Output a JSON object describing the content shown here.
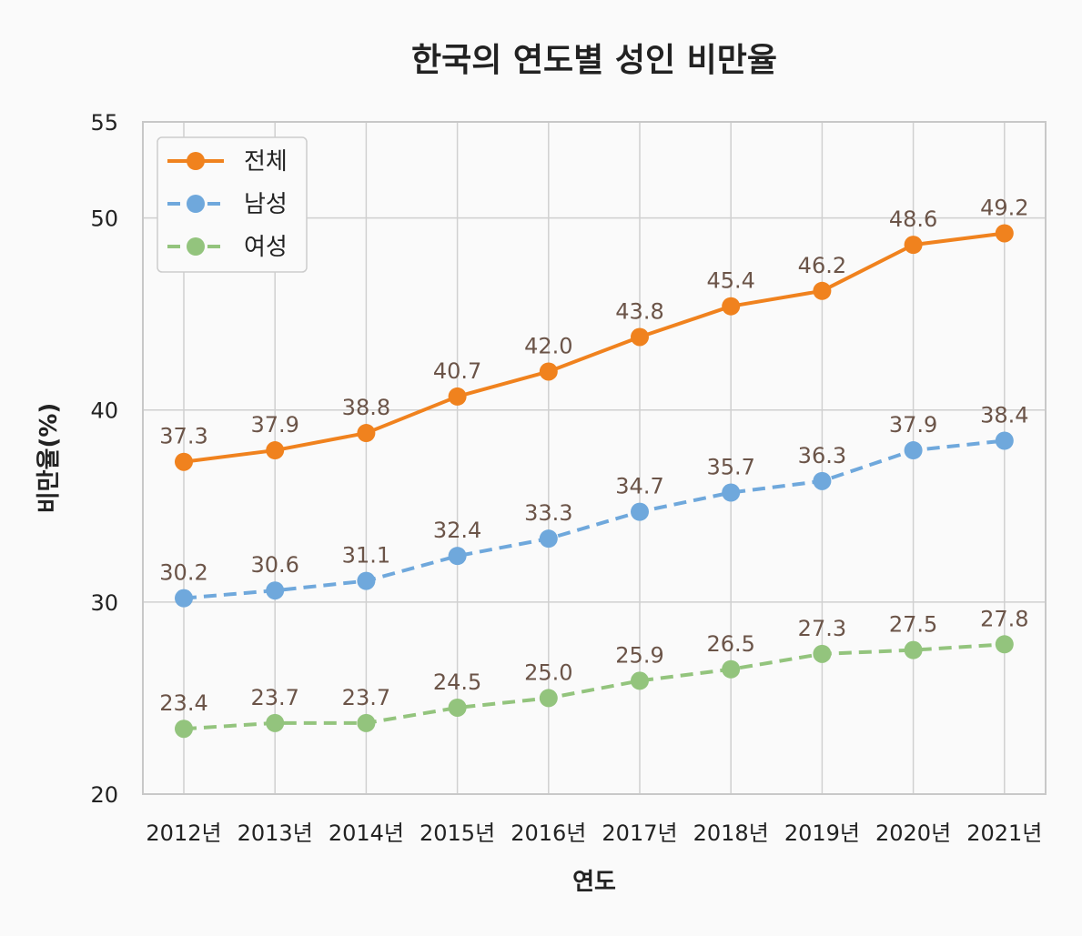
{
  "chart_data": {
    "type": "line",
    "title": "한국의 연도별 성인 비만율",
    "xlabel": "연도",
    "ylabel": "비만율(%)",
    "categories": [
      "2012년",
      "2013년",
      "2014년",
      "2015년",
      "2016년",
      "2017년",
      "2018년",
      "2019년",
      "2020년",
      "2021년"
    ],
    "ylim": [
      20,
      55
    ],
    "yticks": [
      20,
      30,
      40,
      50,
      55
    ],
    "grid": true,
    "legend_position": "top-left",
    "series": [
      {
        "name": "전체",
        "color": "#f0821e",
        "line_style": "solid",
        "values": [
          37.3,
          37.9,
          38.8,
          40.7,
          42.0,
          43.8,
          45.4,
          46.2,
          48.6,
          49.2
        ],
        "labels": [
          "37.3",
          "37.9",
          "38.8",
          "40.7",
          "42.0",
          "43.8",
          "45.4",
          "46.2",
          "48.6",
          "49.2"
        ]
      },
      {
        "name": "남성",
        "color": "#6fa8dc",
        "line_style": "dashed",
        "values": [
          30.2,
          30.6,
          31.1,
          32.4,
          33.3,
          34.7,
          35.7,
          36.3,
          37.9,
          38.4
        ],
        "labels": [
          "30.2",
          "30.6",
          "31.1",
          "32.4",
          "33.3",
          "34.7",
          "35.7",
          "36.3",
          "37.9",
          "38.4"
        ]
      },
      {
        "name": "여성",
        "color": "#93c47d",
        "line_style": "dashed",
        "values": [
          23.4,
          23.7,
          23.7,
          24.5,
          25.0,
          25.9,
          26.5,
          27.3,
          27.5,
          27.8
        ],
        "labels": [
          "23.4",
          "23.7",
          "23.7",
          "24.5",
          "25.0",
          "25.9",
          "26.5",
          "27.3",
          "27.5",
          "27.8"
        ]
      }
    ]
  }
}
